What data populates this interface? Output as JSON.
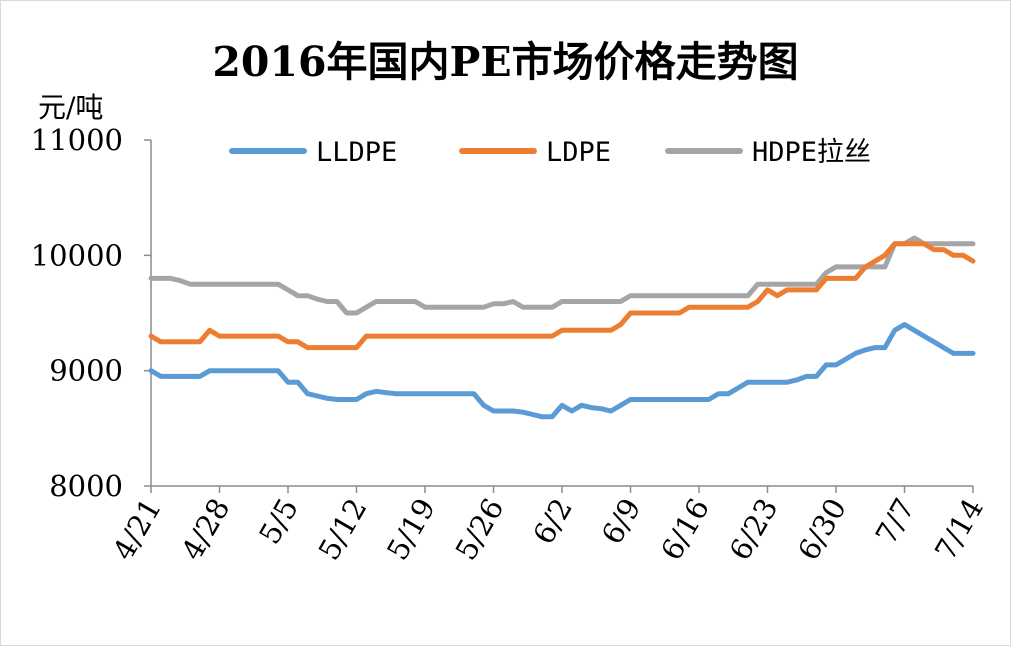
{
  "title": "2016年国内PE市场价格走势图",
  "unit": "元/吨",
  "colors": {
    "LLDPE": "#5b9bd5",
    "LDPE": "#ed7d31",
    "HDPE拉丝": "#a5a5a5"
  },
  "chart_data": {
    "type": "line",
    "title": "2016年国内PE市场价格走势图",
    "ylabel": "元/吨",
    "xlabel": "",
    "ylim": [
      8000,
      11000
    ],
    "yticks": [
      8000,
      9000,
      10000,
      11000
    ],
    "categories": [
      "4/21",
      "4/22",
      "4/23",
      "4/24",
      "4/25",
      "4/26",
      "4/27",
      "4/28",
      "4/29",
      "4/30",
      "5/1",
      "5/2",
      "5/3",
      "5/4",
      "5/5",
      "5/6",
      "5/7",
      "5/8",
      "5/9",
      "5/10",
      "5/11",
      "5/12",
      "5/13",
      "5/14",
      "5/15",
      "5/16",
      "5/17",
      "5/18",
      "5/19",
      "5/20",
      "5/21",
      "5/22",
      "5/23",
      "5/24",
      "5/25",
      "5/26",
      "5/27",
      "5/28",
      "5/29",
      "5/30",
      "5/31",
      "6/1",
      "6/2",
      "6/3",
      "6/4",
      "6/5",
      "6/6",
      "6/7",
      "6/8",
      "6/9",
      "6/10",
      "6/11",
      "6/12",
      "6/13",
      "6/14",
      "6/15",
      "6/16",
      "6/17",
      "6/18",
      "6/19",
      "6/20",
      "6/21",
      "6/22",
      "6/23",
      "6/24",
      "6/25",
      "6/26",
      "6/27",
      "6/28",
      "6/29",
      "6/30",
      "7/1",
      "7/2",
      "7/3",
      "7/4",
      "7/5",
      "7/6",
      "7/7",
      "7/8",
      "7/9",
      "7/10",
      "7/11",
      "7/12",
      "7/13",
      "7/14"
    ],
    "xticks": [
      "4/21",
      "4/28",
      "5/5",
      "5/12",
      "5/19",
      "5/26",
      "6/2",
      "6/9",
      "6/16",
      "6/23",
      "6/30",
      "7/7",
      "7/14"
    ],
    "grid": false,
    "legend": "top",
    "series": [
      {
        "name": "LLDPE",
        "color": "#5b9bd5",
        "values": [
          9000,
          8950,
          8950,
          8950,
          8950,
          8950,
          9000,
          9000,
          9000,
          9000,
          9000,
          9000,
          9000,
          9000,
          8900,
          8900,
          8800,
          8780,
          8760,
          8750,
          8750,
          8750,
          8800,
          8820,
          8810,
          8800,
          8800,
          8800,
          8800,
          8800,
          8800,
          8800,
          8800,
          8800,
          8700,
          8650,
          8650,
          8650,
          8640,
          8620,
          8600,
          8600,
          8700,
          8650,
          8700,
          8680,
          8670,
          8650,
          8700,
          8750,
          8750,
          8750,
          8750,
          8750,
          8750,
          8750,
          8750,
          8750,
          8800,
          8800,
          8850,
          8900,
          8900,
          8900,
          8900,
          8900,
          8920,
          8950,
          8950,
          9050,
          9050,
          9100,
          9150,
          9180,
          9200,
          9200,
          9350,
          9400,
          9350,
          9300,
          9250,
          9200,
          9150,
          9150,
          9150
        ]
      },
      {
        "name": "LDPE",
        "color": "#ed7d31",
        "values": [
          9300,
          9250,
          9250,
          9250,
          9250,
          9250,
          9350,
          9300,
          9300,
          9300,
          9300,
          9300,
          9300,
          9300,
          9250,
          9250,
          9200,
          9200,
          9200,
          9200,
          9200,
          9200,
          9300,
          9300,
          9300,
          9300,
          9300,
          9300,
          9300,
          9300,
          9300,
          9300,
          9300,
          9300,
          9300,
          9300,
          9300,
          9300,
          9300,
          9300,
          9300,
          9300,
          9350,
          9350,
          9350,
          9350,
          9350,
          9350,
          9400,
          9500,
          9500,
          9500,
          9500,
          9500,
          9500,
          9550,
          9550,
          9550,
          9550,
          9550,
          9550,
          9550,
          9600,
          9700,
          9650,
          9700,
          9700,
          9700,
          9700,
          9800,
          9800,
          9800,
          9800,
          9900,
          9950,
          10000,
          10100,
          10100,
          10100,
          10100,
          10050,
          10050,
          10000,
          10000,
          9950
        ]
      },
      {
        "name": "HDPE拉丝",
        "color": "#a5a5a5",
        "values": [
          9800,
          9800,
          9800,
          9780,
          9750,
          9750,
          9750,
          9750,
          9750,
          9750,
          9750,
          9750,
          9750,
          9750,
          9700,
          9650,
          9650,
          9620,
          9600,
          9600,
          9500,
          9500,
          9550,
          9600,
          9600,
          9600,
          9600,
          9600,
          9550,
          9550,
          9550,
          9550,
          9550,
          9550,
          9550,
          9580,
          9580,
          9600,
          9550,
          9550,
          9550,
          9550,
          9600,
          9600,
          9600,
          9600,
          9600,
          9600,
          9600,
          9650,
          9650,
          9650,
          9650,
          9650,
          9650,
          9650,
          9650,
          9650,
          9650,
          9650,
          9650,
          9650,
          9750,
          9750,
          9750,
          9750,
          9750,
          9750,
          9750,
          9850,
          9900,
          9900,
          9900,
          9900,
          9900,
          9900,
          10100,
          10100,
          10150,
          10100,
          10100,
          10100,
          10100,
          10100,
          10100
        ]
      }
    ]
  }
}
